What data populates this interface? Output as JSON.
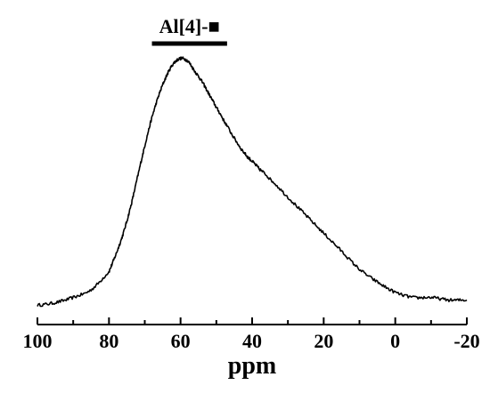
{
  "chart_data": {
    "type": "line",
    "title": "",
    "xlabel": "ppm",
    "ylabel": "",
    "xlim": [
      100,
      -20
    ],
    "x_reversed": true,
    "ylim": [
      0,
      1.0
    ],
    "grid": false,
    "legend": "none",
    "line_color": "#000000",
    "x_ticks": [
      {
        "value": 100,
        "label": "100"
      },
      {
        "value": 80,
        "label": "80"
      },
      {
        "value": 60,
        "label": "60"
      },
      {
        "value": 40,
        "label": "40"
      },
      {
        "value": 20,
        "label": "20"
      },
      {
        "value": 0,
        "label": "0"
      },
      {
        "value": -20,
        "label": "-20"
      }
    ],
    "annotation": {
      "label": "Al[4]-■",
      "x_start": 68,
      "x_end": 47
    },
    "series": [
      {
        "x": [
          100,
          95,
          90,
          85,
          80,
          78,
          76,
          74,
          72,
          70,
          68,
          66,
          64,
          62,
          60,
          58,
          56,
          54,
          52,
          50,
          48,
          45,
          42,
          40,
          38,
          35,
          30,
          25,
          20,
          15,
          10,
          5,
          0,
          -5,
          -10,
          -15,
          -20
        ],
        "y": [
          0.02,
          0.03,
          0.05,
          0.08,
          0.15,
          0.22,
          0.3,
          0.4,
          0.52,
          0.64,
          0.75,
          0.84,
          0.91,
          0.96,
          0.98,
          0.97,
          0.93,
          0.89,
          0.84,
          0.79,
          0.74,
          0.67,
          0.61,
          0.58,
          0.55,
          0.51,
          0.44,
          0.37,
          0.3,
          0.23,
          0.16,
          0.11,
          0.07,
          0.05,
          0.05,
          0.04,
          0.04
        ]
      }
    ]
  }
}
